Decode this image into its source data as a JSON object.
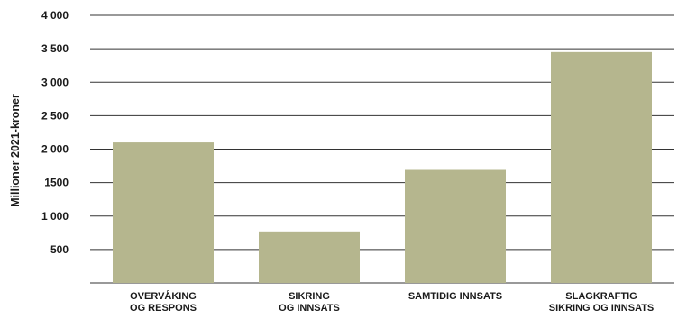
{
  "chart_data": {
    "type": "bar",
    "ylabel": "Millioner 2021-kroner",
    "xlabel": "",
    "categories": [
      [
        "OVERVÅKING",
        "OG RESPONS"
      ],
      [
        "SIKRING",
        "OG INNSATS"
      ],
      [
        "SAMTIDIG INNSATS"
      ],
      [
        "SLAGKRAFTIG",
        "SIKRING OG INNSATS"
      ]
    ],
    "values": [
      2100,
      770,
      1690,
      3450
    ],
    "ylim": [
      0,
      4000
    ],
    "yticks": [
      500,
      1000,
      1500,
      2000,
      2500,
      3000,
      3500,
      4000
    ],
    "ytick_labels": [
      "500",
      "1 000",
      "1500",
      "2 000",
      "2 500",
      "3 000",
      "3 500",
      "4 000"
    ],
    "grid": true,
    "colors": {
      "bar": "#b5b68e",
      "grid": "#333333",
      "text": "#1a1a1a"
    }
  }
}
